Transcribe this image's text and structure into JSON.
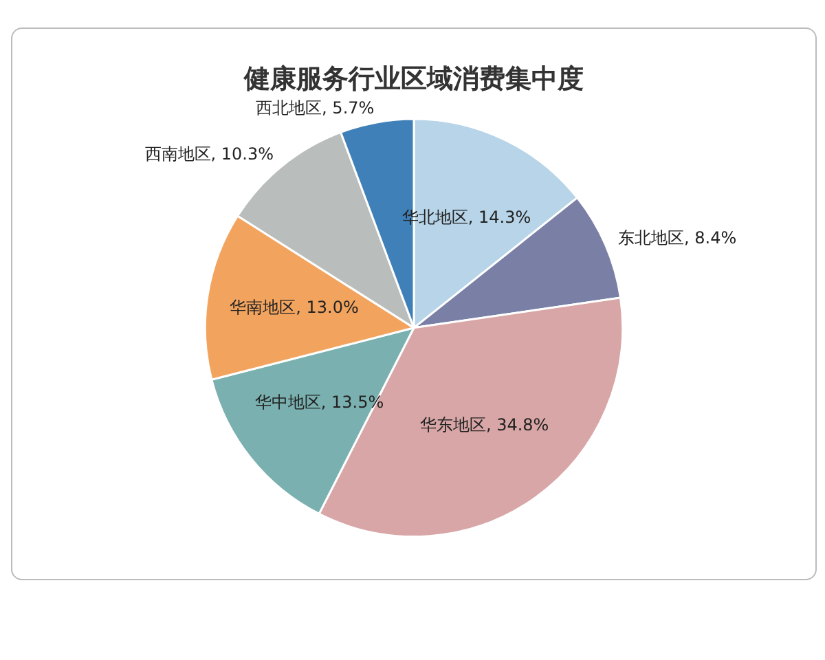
{
  "chart_data": {
    "type": "pie",
    "title": "健康服务行业区域消费集中度",
    "categories": [
      "华北地区",
      "东北地区",
      "华东地区",
      "华中地区",
      "华南地区",
      "西南地区",
      "西北地区"
    ],
    "values": [
      14.3,
      8.4,
      34.8,
      13.5,
      13.0,
      10.3,
      5.7
    ],
    "colors": [
      "#b7d4e8",
      "#7a7fa6",
      "#d8a6a6",
      "#7ab1b0",
      "#f2a45f",
      "#b9bdbc",
      "#3f80b9"
    ],
    "value_labels": [
      ", 14.3%",
      ", 8.4%",
      ", 34.8%",
      ", 13.5%",
      ", 13.0%",
      ", 10.3%",
      ", 5.7%"
    ],
    "legend": false
  }
}
